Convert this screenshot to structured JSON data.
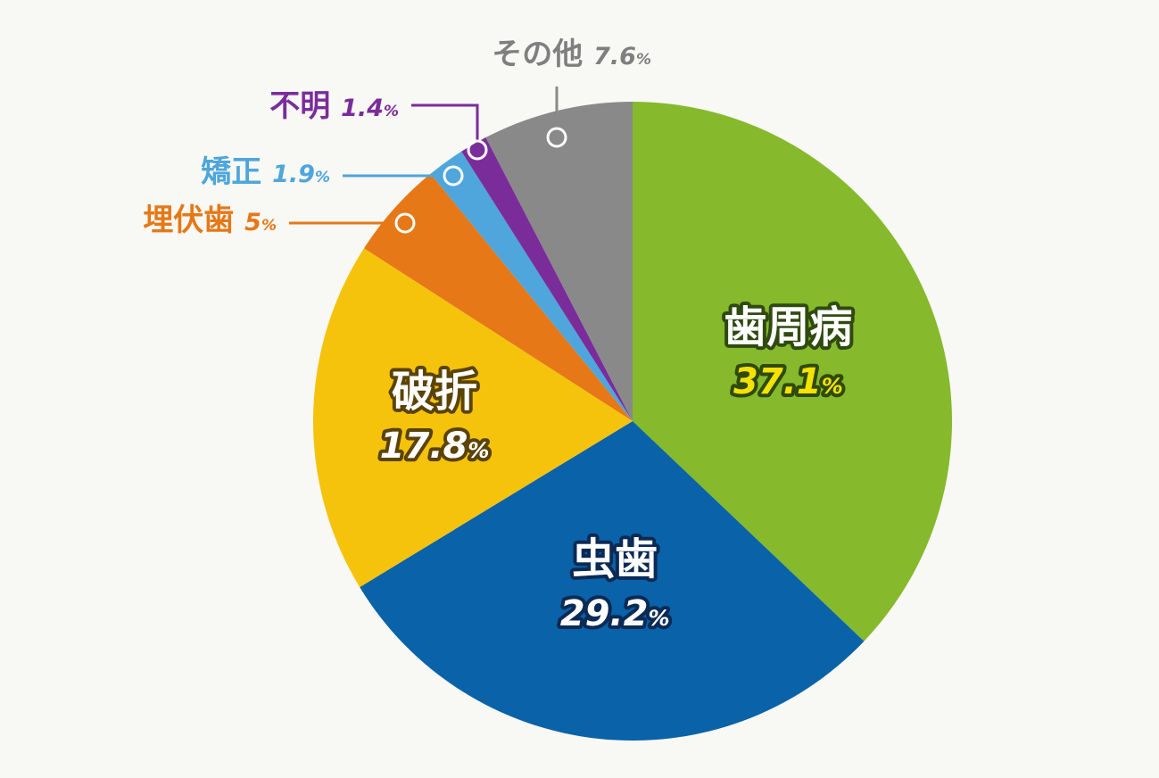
{
  "chart_data": {
    "type": "pie",
    "start": "12 o'clock",
    "direction": "clockwise",
    "slices": [
      {
        "name": "歯周病",
        "value": 37.1,
        "value_text": "37.1",
        "unit": "%",
        "color": "#86b92b",
        "label_fill": "#ffffff",
        "label_outline": "#2f4a10",
        "pct_fill": "#f4e200",
        "pct_outline": "#2f4a10"
      },
      {
        "name": "虫歯",
        "value": 29.2,
        "value_text": "29.2",
        "unit": "%",
        "color": "#0a62a8",
        "label_fill": "#ffffff",
        "label_outline": "#0b2a55",
        "pct_fill": "#ffffff",
        "pct_outline": "#0b2a55"
      },
      {
        "name": "破折",
        "value": 17.8,
        "value_text": "17.8",
        "unit": "%",
        "color": "#f5c30c",
        "label_fill": "#ffffff",
        "label_outline": "#5a4304",
        "pct_fill": "#ffffff",
        "pct_outline": "#5a4304"
      },
      {
        "name": "埋伏歯",
        "value": 5,
        "value_text": "5",
        "unit": "%",
        "color": "#e67817",
        "label_fill": "#e67817"
      },
      {
        "name": "矯正",
        "value": 1.9,
        "value_text": "1.9",
        "unit": "%",
        "color": "#4ea6dc",
        "label_fill": "#4ea6dc"
      },
      {
        "name": "不明",
        "value": 1.4,
        "value_text": "1.4",
        "unit": "%",
        "color": "#7a2d9a",
        "label_fill": "#7a2d9a"
      },
      {
        "name": "その他",
        "value": 7.6,
        "value_text": "7.6",
        "unit": "%",
        "color": "#898989",
        "label_fill": "#7f7f7f"
      }
    ]
  }
}
